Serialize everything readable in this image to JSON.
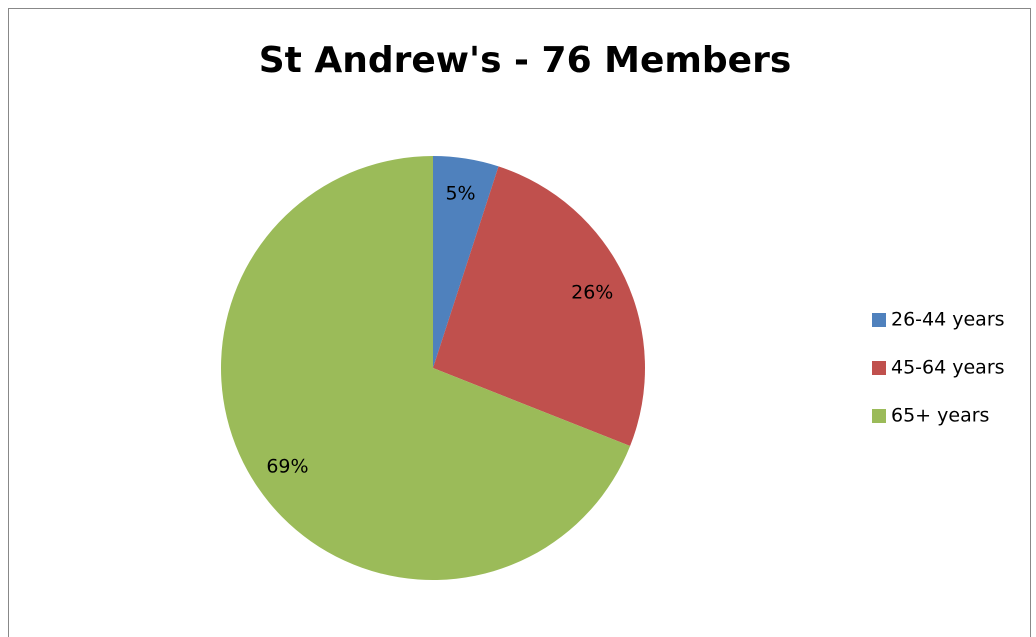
{
  "chart_data": {
    "type": "pie",
    "title": "St Andrew's - 76 Members",
    "categories": [
      "26-44 years",
      "45-64 years",
      "65+ years"
    ],
    "values": [
      5,
      26,
      69
    ],
    "value_labels": [
      "5%",
      "26%",
      "69%"
    ],
    "colors": [
      "#4f81bd",
      "#c0504d",
      "#9bbb59"
    ],
    "legend": "right"
  }
}
